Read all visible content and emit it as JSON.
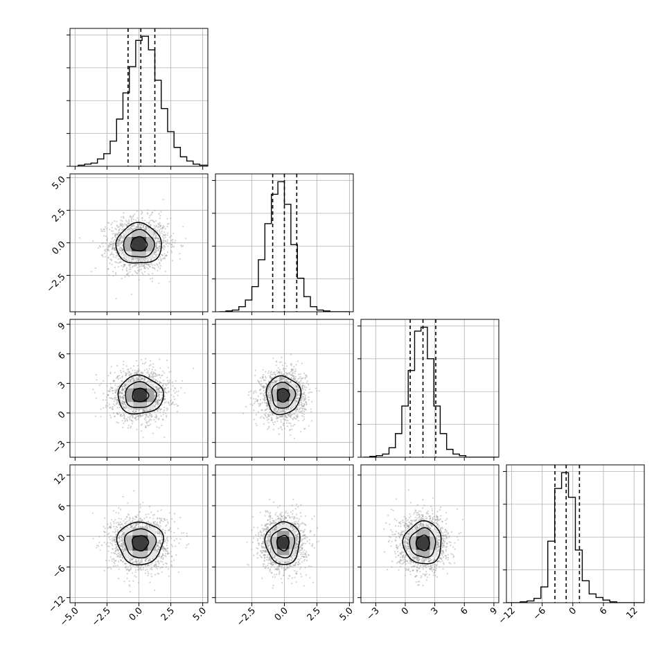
{
  "chart_data": {
    "type": "corner",
    "colors": {
      "frame": "#000000",
      "grid": "#b0b0b0",
      "scatter": "#9a9a9a",
      "contour": "#000000",
      "quantile": "#000000"
    },
    "quantile_style": "dashed",
    "parameters": [
      {
        "index": 0,
        "range": [
          -5.4,
          5.4
        ],
        "ticks": [
          -5.0,
          -2.5,
          0.0,
          2.5,
          5.0
        ],
        "tick_labels": [
          "−5.0",
          "−2.5",
          "0.0",
          "2.5",
          "5.0"
        ],
        "quantiles": [
          -0.85,
          0.15,
          1.25
        ]
      },
      {
        "index": 1,
        "range": [
          -5.3,
          5.3
        ],
        "ticks": [
          -2.5,
          0.0,
          2.5,
          5.0
        ],
        "tick_labels": [
          "−2.5",
          "0.0",
          "2.5",
          "5.0"
        ],
        "quantiles": [
          -0.9,
          0.0,
          0.95
        ]
      },
      {
        "index": 2,
        "range": [
          -4.5,
          9.5
        ],
        "ticks": [
          -3,
          0,
          3,
          6,
          9
        ],
        "tick_labels": [
          "−3",
          "0",
          "3",
          "6",
          "9"
        ],
        "quantiles": [
          0.5,
          1.8,
          3.1
        ]
      },
      {
        "index": 3,
        "range": [
          -13.0,
          14.0
        ],
        "ticks": [
          -12,
          -6,
          0,
          6,
          12
        ],
        "tick_labels": [
          "−12",
          "−6",
          "0",
          "6",
          "12"
        ],
        "quantiles": [
          -3.5,
          -1.3,
          1.3
        ]
      }
    ],
    "histograms": [
      {
        "bin_width": 0.5,
        "start": -4.75,
        "counts": [
          1,
          2,
          3,
          7,
          12,
          24,
          45,
          70,
          95,
          120,
          124,
          111,
          82,
          55,
          33,
          18,
          9,
          5,
          2,
          1,
          1
        ]
      },
      {
        "bin_width": 0.5,
        "start": -5.0,
        "counts": [
          0,
          1,
          2,
          6,
          14,
          30,
          62,
          105,
          140,
          155,
          128,
          80,
          40,
          18,
          6,
          2,
          1,
          0,
          0,
          0
        ]
      },
      {
        "bin_width": 0.65,
        "start": -4.25,
        "counts": [
          0,
          1,
          2,
          4,
          12,
          30,
          65,
          110,
          160,
          165,
          125,
          65,
          30,
          10,
          4,
          2,
          0,
          0,
          0,
          0,
          0
        ]
      },
      {
        "bin_width": 1.35,
        "start": -13.0,
        "counts": [
          0,
          0,
          1,
          2,
          5,
          18,
          70,
          130,
          148,
          120,
          60,
          25,
          10,
          6,
          3,
          1,
          0,
          0,
          0,
          0
        ]
      }
    ],
    "pairs": [
      {
        "x": 0,
        "y": 1,
        "center": [
          0.0,
          -0.1
        ],
        "sigma": [
          1.15,
          1.0
        ]
      },
      {
        "x": 0,
        "y": 2,
        "center": [
          0.1,
          1.8
        ],
        "sigma": [
          1.15,
          1.25
        ]
      },
      {
        "x": 1,
        "y": 2,
        "center": [
          -0.1,
          1.8
        ],
        "sigma": [
          0.85,
          1.25
        ]
      },
      {
        "x": 0,
        "y": 3,
        "center": [
          0.1,
          -1.3
        ],
        "sigma": [
          1.15,
          2.7
        ]
      },
      {
        "x": 1,
        "y": 3,
        "center": [
          -0.1,
          -1.3
        ],
        "sigma": [
          0.85,
          2.7
        ]
      },
      {
        "x": 2,
        "y": 3,
        "center": [
          1.8,
          -1.3
        ],
        "sigma": [
          1.25,
          2.7
        ]
      }
    ]
  }
}
